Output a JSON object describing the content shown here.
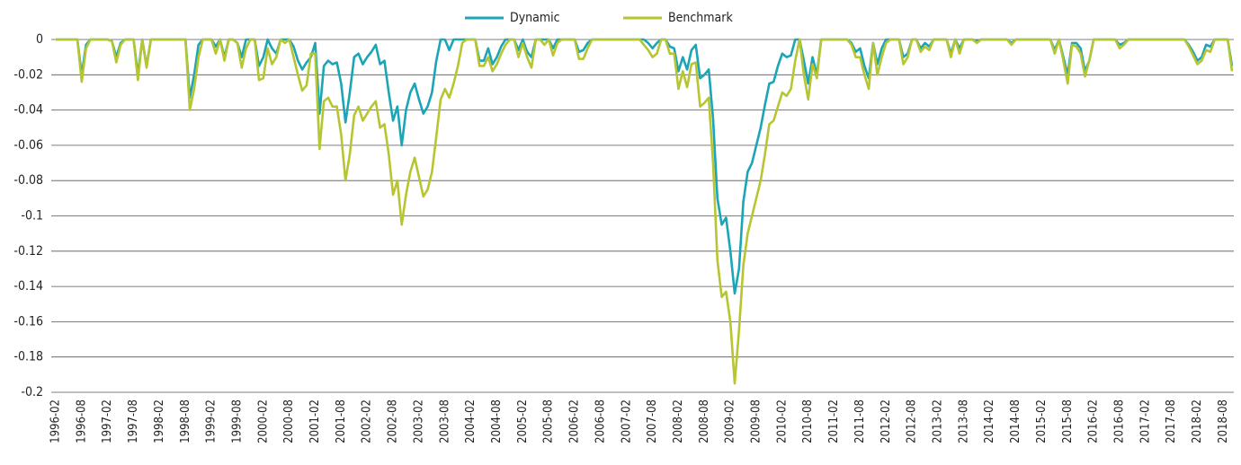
{
  "chart_data": {
    "type": "line",
    "categories": [
      "1996-02",
      null,
      null,
      null,
      null,
      null,
      "1996-08",
      null,
      null,
      null,
      null,
      null,
      "1997-02",
      null,
      null,
      null,
      null,
      null,
      "1997-08",
      null,
      null,
      null,
      null,
      null,
      "1998-02",
      null,
      null,
      null,
      null,
      null,
      "1998-08",
      null,
      null,
      null,
      null,
      null,
      "1999-02",
      null,
      null,
      null,
      null,
      null,
      "1999-08",
      null,
      null,
      null,
      null,
      null,
      "2000-02",
      null,
      null,
      null,
      null,
      null,
      "2000-08",
      null,
      null,
      null,
      null,
      null,
      "2001-02",
      null,
      null,
      null,
      null,
      null,
      "2001-08",
      null,
      null,
      null,
      null,
      null,
      "2002-02",
      null,
      null,
      null,
      null,
      null,
      "2002-08",
      null,
      null,
      null,
      null,
      null,
      "2003-02",
      null,
      null,
      null,
      null,
      null,
      "2003-08",
      null,
      null,
      null,
      null,
      null,
      "2004-02",
      null,
      null,
      null,
      null,
      null,
      "2004-08",
      null,
      null,
      null,
      null,
      null,
      "2005-02",
      null,
      null,
      null,
      null,
      null,
      "2005-08",
      null,
      null,
      null,
      null,
      null,
      "2006-02",
      null,
      null,
      null,
      null,
      null,
      "2006-08",
      null,
      null,
      null,
      null,
      null,
      "2007-02",
      null,
      null,
      null,
      null,
      null,
      "2007-08",
      null,
      null,
      null,
      null,
      null,
      "2008-02",
      null,
      null,
      null,
      null,
      null,
      "2008-08",
      null,
      null,
      null,
      null,
      null,
      "2009-02",
      null,
      null,
      null,
      null,
      null,
      "2009-08",
      null,
      null,
      null,
      null,
      null,
      "2010-02",
      null,
      null,
      null,
      null,
      null,
      "2010-08",
      null,
      null,
      null,
      null,
      null,
      "2011-02",
      null,
      null,
      null,
      null,
      null,
      "2011-08",
      null,
      null,
      null,
      null,
      null,
      "2012-02",
      null,
      null,
      null,
      null,
      null,
      "2012-08",
      null,
      null,
      null,
      null,
      null,
      "2013-02",
      null,
      null,
      null,
      null,
      null,
      "2013-08",
      null,
      null,
      null,
      null,
      null,
      "2014-02",
      null,
      null,
      null,
      null,
      null,
      "2014-08",
      null,
      null,
      null,
      null,
      null,
      "2015-02",
      null,
      null,
      null,
      null,
      null,
      "2015-08",
      null,
      null,
      null,
      null,
      null,
      "2016-02",
      null,
      null,
      null,
      null,
      null,
      "2016-08",
      null,
      null,
      null,
      null,
      null,
      "2017-02",
      null,
      null,
      null,
      null,
      null,
      "2017-08",
      null,
      null,
      null,
      null,
      null,
      "2018-02",
      null,
      null,
      null,
      null,
      null,
      "2018-08",
      null,
      null
    ],
    "series": [
      {
        "name": "Dynamic",
        "color": "#1ba5b6",
        "values": [
          0,
          0,
          0,
          0,
          0,
          0,
          -0.02,
          -0.003,
          0,
          0,
          0,
          0,
          0,
          -0.001,
          -0.01,
          -0.002,
          0,
          0,
          0,
          -0.02,
          0,
          -0.015,
          0,
          0,
          0,
          0,
          0,
          0,
          0,
          0,
          0,
          -0.033,
          -0.02,
          -0.003,
          0,
          0,
          0,
          -0.004,
          0,
          -0.01,
          0,
          0,
          -0.002,
          -0.01,
          0,
          0,
          0,
          -0.015,
          -0.01,
          0,
          -0.005,
          -0.008,
          0,
          0,
          0,
          -0.004,
          -0.012,
          -0.017,
          -0.013,
          -0.01,
          -0.002,
          -0.042,
          -0.015,
          -0.012,
          -0.014,
          -0.013,
          -0.025,
          -0.047,
          -0.03,
          -0.01,
          -0.008,
          -0.014,
          -0.01,
          -0.007,
          -0.003,
          -0.014,
          -0.012,
          -0.03,
          -0.046,
          -0.038,
          -0.06,
          -0.04,
          -0.03,
          -0.025,
          -0.034,
          -0.042,
          -0.038,
          -0.03,
          -0.012,
          0,
          0,
          -0.006,
          0,
          0,
          0,
          0,
          0,
          0,
          -0.012,
          -0.012,
          -0.005,
          -0.014,
          -0.01,
          -0.004,
          0,
          0,
          0,
          -0.006,
          0,
          -0.007,
          -0.01,
          0,
          0,
          0,
          0,
          -0.005,
          0,
          0,
          0,
          0,
          0,
          -0.007,
          -0.006,
          -0.002,
          0,
          0,
          0,
          0,
          0,
          0,
          0,
          0,
          0,
          0,
          0,
          0,
          0,
          -0.002,
          -0.005,
          -0.002,
          0,
          0,
          -0.004,
          -0.005,
          -0.018,
          -0.01,
          -0.017,
          -0.006,
          -0.003,
          -0.022,
          -0.02,
          -0.017,
          -0.045,
          -0.09,
          -0.105,
          -0.101,
          -0.12,
          -0.144,
          -0.13,
          -0.092,
          -0.075,
          -0.07,
          -0.06,
          -0.05,
          -0.037,
          -0.025,
          -0.024,
          -0.015,
          -0.008,
          -0.01,
          -0.009,
          0,
          0,
          -0.012,
          -0.025,
          -0.01,
          -0.02,
          0,
          0,
          0,
          0,
          0,
          0,
          0,
          -0.002,
          -0.007,
          -0.005,
          -0.015,
          -0.022,
          -0.002,
          -0.014,
          -0.005,
          0,
          0,
          0,
          0,
          -0.01,
          -0.008,
          0,
          0,
          -0.005,
          -0.002,
          -0.004,
          0,
          0,
          0,
          0,
          -0.008,
          0,
          -0.005,
          0,
          0,
          0,
          -0.001,
          0,
          0,
          0,
          0,
          0,
          0,
          0,
          -0.002,
          0,
          0,
          0,
          0,
          0,
          0,
          0,
          0,
          0,
          -0.006,
          0,
          -0.01,
          -0.02,
          -0.002,
          -0.002,
          -0.005,
          -0.018,
          -0.012,
          0,
          0,
          0,
          0,
          0,
          0,
          -0.003,
          -0.002,
          0,
          0,
          0,
          0,
          0,
          0,
          0,
          0,
          0,
          0,
          0,
          0,
          0,
          0,
          -0.003,
          -0.007,
          -0.012,
          -0.01,
          -0.003,
          -0.004,
          0,
          0,
          0,
          0,
          -0.015
        ]
      },
      {
        "name": "Benchmark",
        "color": "#b7c531",
        "values": [
          0,
          0,
          0,
          0,
          0,
          0,
          -0.024,
          -0.005,
          0,
          0,
          0,
          0,
          0,
          -0.001,
          -0.013,
          -0.003,
          0,
          0,
          0,
          -0.023,
          0,
          -0.016,
          0,
          0,
          0,
          0,
          0,
          0,
          0,
          0,
          0,
          -0.04,
          -0.028,
          -0.01,
          0,
          0,
          0,
          -0.008,
          0,
          -0.012,
          0,
          0,
          -0.002,
          -0.016,
          -0.005,
          0,
          0,
          -0.023,
          -0.022,
          -0.005,
          -0.014,
          -0.01,
          0,
          -0.002,
          0,
          -0.01,
          -0.02,
          -0.029,
          -0.026,
          -0.008,
          -0.008,
          -0.062,
          -0.035,
          -0.033,
          -0.038,
          -0.038,
          -0.054,
          -0.08,
          -0.065,
          -0.043,
          -0.038,
          -0.046,
          -0.042,
          -0.038,
          -0.035,
          -0.05,
          -0.048,
          -0.065,
          -0.088,
          -0.08,
          -0.105,
          -0.088,
          -0.075,
          -0.067,
          -0.078,
          -0.089,
          -0.085,
          -0.075,
          -0.055,
          -0.034,
          -0.028,
          -0.033,
          -0.025,
          -0.015,
          -0.002,
          0,
          0,
          0,
          -0.015,
          -0.015,
          -0.01,
          -0.018,
          -0.014,
          -0.008,
          -0.003,
          0,
          0,
          -0.01,
          -0.002,
          -0.01,
          -0.016,
          0,
          0,
          -0.003,
          0,
          -0.009,
          -0.002,
          0,
          0,
          0,
          0,
          -0.011,
          -0.011,
          -0.005,
          0,
          0,
          0,
          0,
          0,
          0,
          0,
          0,
          0,
          0,
          0,
          0,
          -0.003,
          -0.006,
          -0.01,
          -0.008,
          0,
          0,
          -0.008,
          -0.008,
          -0.028,
          -0.018,
          -0.027,
          -0.014,
          -0.013,
          -0.038,
          -0.036,
          -0.033,
          -0.07,
          -0.125,
          -0.146,
          -0.143,
          -0.16,
          -0.195,
          -0.165,
          -0.128,
          -0.11,
          -0.1,
          -0.09,
          -0.08,
          -0.065,
          -0.048,
          -0.046,
          -0.038,
          -0.03,
          -0.032,
          -0.028,
          -0.012,
          0,
          -0.02,
          -0.034,
          -0.014,
          -0.022,
          0,
          0,
          0,
          0,
          0,
          0,
          0,
          -0.003,
          -0.01,
          -0.01,
          -0.02,
          -0.028,
          -0.002,
          -0.02,
          -0.01,
          -0.002,
          0,
          0,
          0,
          -0.014,
          -0.01,
          0,
          0,
          -0.007,
          -0.004,
          -0.006,
          0,
          0,
          0,
          0,
          -0.01,
          0,
          -0.008,
          0,
          0,
          0,
          -0.002,
          0,
          0,
          0,
          0,
          0,
          0,
          0,
          -0.003,
          0,
          0,
          0,
          0,
          0,
          0,
          0,
          0,
          0,
          -0.008,
          0,
          -0.012,
          -0.025,
          -0.003,
          -0.004,
          -0.008,
          -0.021,
          -0.012,
          0,
          0,
          0,
          0,
          0,
          0,
          -0.005,
          -0.003,
          0,
          0,
          0,
          0,
          0,
          0,
          0,
          0,
          0,
          0,
          0,
          0,
          0,
          0,
          -0.004,
          -0.009,
          -0.014,
          -0.012,
          -0.006,
          -0.007,
          0,
          0,
          0,
          0,
          -0.018
        ]
      }
    ],
    "ylim": [
      -0.2,
      0
    ],
    "yticks": [
      0,
      -0.02,
      -0.04,
      -0.06,
      -0.08,
      -0.1,
      -0.12,
      -0.14,
      -0.16,
      -0.18,
      -0.2
    ],
    "grid": true,
    "legend": "top"
  }
}
